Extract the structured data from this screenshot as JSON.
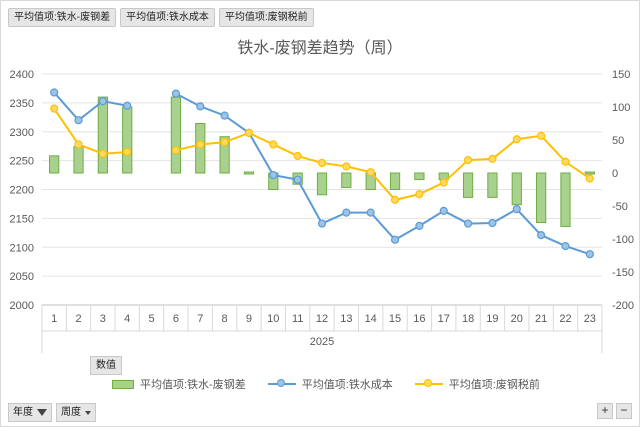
{
  "pivot_buttons": [
    "平均值项:铁水-废钢差",
    "平均值项:铁水成本",
    "平均值项:废钢税前"
  ],
  "values_button": "数值",
  "filters": [
    {
      "label": "年度",
      "icon": "filter-icon"
    },
    {
      "label": "周度",
      "icon": "dropdown-icon"
    }
  ],
  "zoom": {
    "plus": "+",
    "minus": "−"
  },
  "chart_data": {
    "type": "bar+line",
    "title": "铁水-废钢差趋势（周）",
    "categories": [
      "1",
      "2",
      "3",
      "4",
      "5",
      "6",
      "7",
      "8",
      "9",
      "10",
      "11",
      "12",
      "13",
      "14",
      "15",
      "16",
      "17",
      "18",
      "19",
      "20",
      "21",
      "22",
      "23"
    ],
    "x_group_label": "2025",
    "y_left": {
      "min": 2000,
      "max": 2400,
      "step": 50
    },
    "y_right": {
      "min": -200,
      "max": 150,
      "step": 50
    },
    "grid": true,
    "legend_position": "bottom",
    "series": [
      {
        "name": "平均值项:铁水-废钢差",
        "type": "bar",
        "axis": "right",
        "color": "#a9d18e",
        "edge": "#70ad47",
        "values": [
          26,
          40,
          115,
          100,
          null,
          115,
          75,
          55,
          2,
          -25,
          -17,
          -33,
          -22,
          -25,
          -25,
          -10,
          -10,
          -37,
          -37,
          -48,
          -75,
          -81,
          0
        ]
      },
      {
        "name": "平均值项:铁水成本",
        "type": "line",
        "axis": "left",
        "color": "#5b9bd5",
        "values": [
          2368,
          2320,
          2353,
          2345,
          null,
          2366,
          2344,
          2328,
          2298,
          2225,
          2217,
          2141,
          2160,
          2160,
          2113,
          2137,
          2163,
          2141,
          2142,
          2166,
          2121,
          2102,
          2088
        ]
      },
      {
        "name": "平均值项:废钢税前",
        "type": "line",
        "axis": "left",
        "color": "#ffc000",
        "values": [
          2340,
          2278,
          2262,
          2265,
          null,
          2268,
          2278,
          2282,
          2298,
          2278,
          2258,
          2246,
          2240,
          2230,
          2182,
          2192,
          2212,
          2251,
          2253,
          2287,
          2293,
          2248,
          2219
        ]
      }
    ]
  }
}
